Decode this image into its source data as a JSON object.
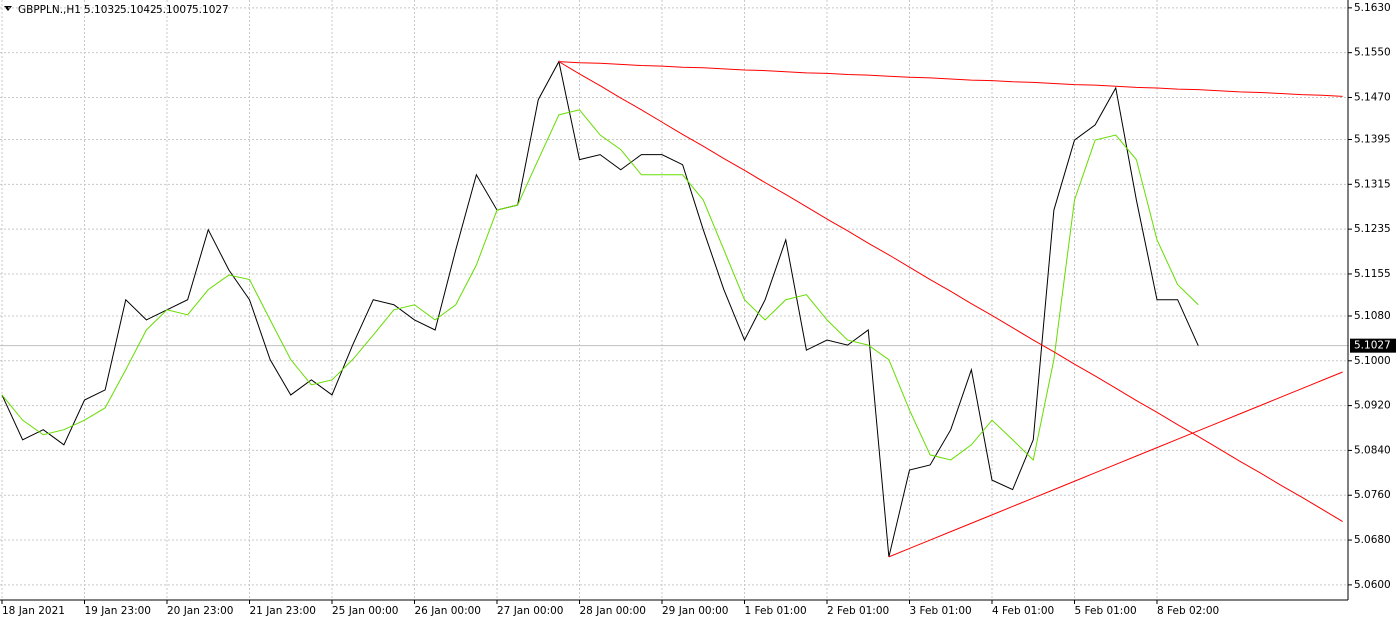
{
  "chart_data": {
    "type": "line",
    "symbol": "GBPPLN.,H1",
    "ohlc": [
      5.1032,
      5.1042,
      5.1007,
      5.1027
    ],
    "categories": [
      "18 Jan 2021",
      null,
      null,
      null,
      "19 Jan 23:00",
      null,
      null,
      null,
      "20 Jan 23:00",
      null,
      null,
      null,
      "21 Jan 23:00",
      null,
      null,
      null,
      "25 Jan 00:00",
      null,
      null,
      null,
      "26 Jan 00:00",
      null,
      null,
      null,
      "27 Jan 00:00",
      null,
      null,
      null,
      "28 Jan 00:00",
      null,
      null,
      null,
      "29 Jan 00:00",
      null,
      null,
      null,
      "1 Feb 01:00",
      null,
      null,
      null,
      "2 Feb 01:00",
      null,
      null,
      null,
      "3 Feb 01:00",
      null,
      null,
      null,
      "4 Feb 01:00",
      null,
      null,
      null,
      "5 Feb 01:00",
      null,
      null,
      null,
      "8 Feb 02:00",
      null,
      null,
      null,
      null,
      null,
      null,
      null,
      null,
      null
    ],
    "series": [
      {
        "color": "#000000",
        "values": [
          5.0939,
          5.0859,
          5.0877,
          5.085,
          5.093,
          5.0948,
          5.1109,
          5.1073,
          5.1091,
          5.1109,
          5.1234,
          5.1162,
          5.1109,
          5.1002,
          5.0939,
          5.0966,
          5.0939,
          5.1028,
          5.1109,
          5.11,
          5.1073,
          5.1055,
          5.1198,
          5.1332,
          5.1269,
          5.1278,
          5.1466,
          5.1534,
          5.1359,
          5.1368,
          5.1341,
          5.1368,
          5.1368,
          5.135,
          5.1234,
          5.1127,
          5.1037,
          5.1109,
          5.1216,
          5.1019,
          5.1037,
          5.1028,
          5.1055,
          5.065,
          5.0805,
          5.0814,
          5.0877,
          5.0984,
          5.0787,
          5.077,
          5.0859,
          5.1269,
          5.1394,
          5.1421,
          5.1487,
          5.1287,
          5.1109,
          5.1109,
          5.1027,
          null,
          null,
          null,
          null,
          null,
          null,
          null
        ]
      },
      {
        "color": "#66dd00",
        "values": [
          5.0939,
          5.0894,
          5.0868,
          5.0877,
          5.0894,
          5.0916,
          5.0984,
          5.1055,
          5.1091,
          5.1082,
          5.1127,
          5.1153,
          5.1145,
          5.1073,
          5.1002,
          5.0957,
          5.0966,
          5.1002,
          5.1046,
          5.1091,
          5.11,
          5.1073,
          5.11,
          5.1171,
          5.1269,
          5.1278,
          5.1359,
          5.1439,
          5.1448,
          5.1403,
          5.1377,
          5.1332,
          5.1332,
          5.1332,
          5.1287,
          5.1198,
          5.1109,
          5.1073,
          5.1109,
          5.1118,
          5.1073,
          5.1037,
          5.1028,
          5.1002,
          5.0912,
          5.0832,
          5.0823,
          5.085,
          5.0894,
          5.0859,
          5.0823,
          5.1002,
          5.1287,
          5.1394,
          5.1403,
          5.1359,
          5.1216,
          5.1136,
          5.11,
          null,
          null,
          null,
          null,
          null,
          null,
          null
        ]
      },
      {
        "color": "#ff0000",
        "values": [
          null,
          null,
          null,
          null,
          null,
          null,
          null,
          null,
          null,
          null,
          null,
          null,
          null,
          null,
          null,
          null,
          null,
          null,
          null,
          null,
          null,
          null,
          null,
          null,
          null,
          null,
          null,
          5.1534,
          5.1532,
          5.1531,
          5.1529,
          5.1527,
          5.1526,
          5.1524,
          5.1523,
          5.1521,
          5.1519,
          5.1518,
          5.1516,
          5.1514,
          5.1513,
          5.1511,
          5.151,
          5.1508,
          5.1506,
          5.1505,
          5.1503,
          5.1501,
          5.15,
          5.1498,
          5.1497,
          5.1495,
          5.1493,
          5.1492,
          5.149,
          5.1488,
          5.1487,
          5.1485,
          5.1484,
          5.1482,
          5.148,
          5.1479,
          5.1477,
          5.1475,
          5.1474,
          5.1472
        ]
      },
      {
        "color": "#ff0000",
        "values": [
          null,
          null,
          null,
          null,
          null,
          null,
          null,
          null,
          null,
          null,
          null,
          null,
          null,
          null,
          null,
          null,
          null,
          null,
          null,
          null,
          null,
          null,
          null,
          null,
          null,
          null,
          null,
          5.1534,
          5.1512,
          5.1491,
          5.1469,
          5.1448,
          5.1426,
          5.1404,
          5.1383,
          5.1361,
          5.134,
          5.1318,
          5.1297,
          5.1275,
          5.1253,
          5.1232,
          5.121,
          5.1189,
          5.1167,
          5.1145,
          5.1124,
          5.1102,
          5.1081,
          5.1059,
          5.1037,
          5.1016,
          5.0994,
          5.0973,
          5.0951,
          5.0929,
          5.0908,
          5.0886,
          5.0865,
          5.0843,
          5.0821,
          5.08,
          5.0778,
          5.0757,
          5.0735,
          5.0713
        ]
      },
      {
        "color": "#ff0000",
        "values": [
          null,
          null,
          null,
          null,
          null,
          null,
          null,
          null,
          null,
          null,
          null,
          null,
          null,
          null,
          null,
          null,
          null,
          null,
          null,
          null,
          null,
          null,
          null,
          null,
          null,
          null,
          null,
          null,
          null,
          null,
          null,
          null,
          null,
          null,
          null,
          null,
          null,
          null,
          null,
          null,
          null,
          null,
          null,
          5.065,
          5.0665,
          5.068,
          5.0695,
          5.071,
          5.0725,
          5.074,
          5.0755,
          5.077,
          5.0785,
          5.08,
          5.0815,
          5.083,
          5.0845,
          5.086,
          5.0875,
          5.089,
          5.0905,
          5.092,
          5.0935,
          5.095,
          5.0965,
          5.098
        ]
      }
    ],
    "ylim": [
      5.0573,
      5.1644
    ],
    "yticks": [
      {
        "value": 5.163,
        "label": "5.1630"
      },
      {
        "value": 5.155,
        "label": "5.1550"
      },
      {
        "value": 5.147,
        "label": "5.1470"
      },
      5.1395,
      5.1315,
      5.1235,
      5.1155,
      {
        "value": 5.108,
        "label": "5.1080"
      },
      {
        "value": 5.1,
        "label": "5.1000"
      },
      {
        "value": 5.092,
        "label": "5.0920"
      },
      {
        "value": 5.084,
        "label": "5.0840"
      },
      {
        "value": 5.076,
        "label": "5.0760"
      },
      {
        "value": 5.068,
        "label": "5.0680"
      },
      {
        "value": 5.06,
        "label": "5.0600"
      }
    ],
    "grid": true
  }
}
